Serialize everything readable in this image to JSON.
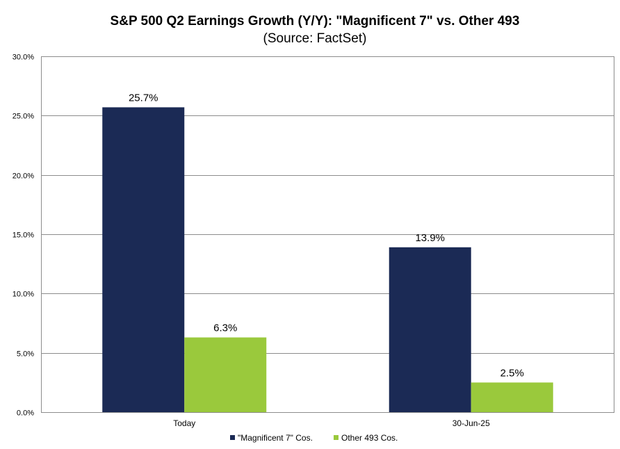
{
  "chart_data": {
    "type": "bar",
    "title": "S&P 500 Q2 Earnings Growth (Y/Y): \"Magnificent 7\" vs. Other 493",
    "subtitle": "(Source: FactSet)",
    "categories": [
      "Today",
      "30-Jun-25"
    ],
    "series": [
      {
        "name": "\"Magnificent 7\" Cos.",
        "values": [
          25.7,
          13.9
        ],
        "color": "#1b2a55"
      },
      {
        "name": "Other 493 Cos.",
        "values": [
          6.3,
          2.5
        ],
        "color": "#9ac93c"
      }
    ],
    "data_labels": [
      [
        "25.7%",
        "13.9%"
      ],
      [
        "6.3%",
        "2.5%"
      ]
    ],
    "ylim": [
      0,
      30
    ],
    "yticks": [
      0,
      5,
      10,
      15,
      20,
      25,
      30
    ],
    "ytick_labels": [
      "0.0%",
      "5.0%",
      "10.0%",
      "15.0%",
      "20.0%",
      "25.0%",
      "30.0%"
    ],
    "grid": true,
    "legend_position": "bottom-center",
    "grid_color": "#8c8c8c",
    "axis_color": "#8c8c8c"
  }
}
